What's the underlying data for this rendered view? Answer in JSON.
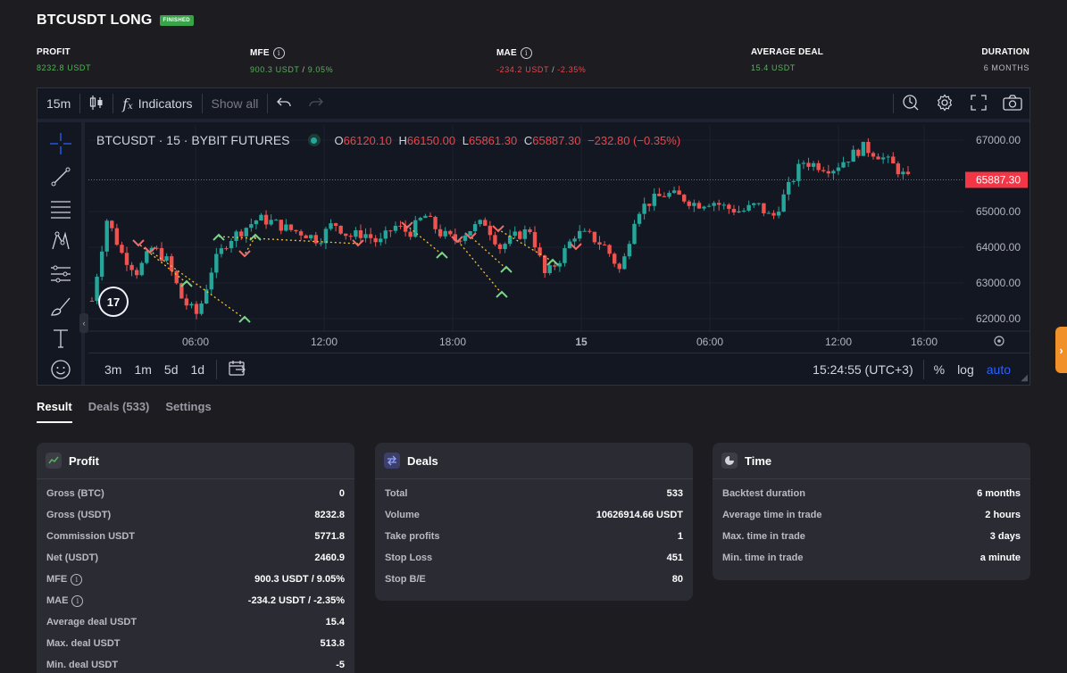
{
  "header": {
    "title": "BTCUSDT LONG",
    "badge": "FINISHED",
    "badge_color": "#3aa34a"
  },
  "stats": {
    "profit": {
      "label": "PROFIT",
      "value": "8232.8 USDT"
    },
    "mfe": {
      "label": "MFE",
      "value_usdt": "900.3 USDT",
      "sep": "/",
      "value_pct": "9.05%"
    },
    "mae": {
      "label": "MAE",
      "value_usdt": "-234.2 USDT",
      "sep": "/",
      "value_pct": "-2.35%"
    },
    "average_deal": {
      "label": "AVERAGE DEAL",
      "value": "15.4 USDT"
    },
    "duration": {
      "label": "DURATION",
      "value": "6 MONTHS"
    }
  },
  "chart_toolbar": {
    "interval": "15m",
    "indicators": "Indicators",
    "show_all": "Show all",
    "icons": [
      "candles-icon",
      "fx-icon",
      "undo-icon",
      "redo-icon",
      "replay-icon",
      "gear-icon",
      "fullscreen-icon",
      "camera-icon"
    ]
  },
  "chart_legend": {
    "symbol": "BTCUSDT · 15 · BYBIT FUTURES",
    "o_label": "O",
    "o_value": "66120.10",
    "h_label": "H",
    "h_value": "66150.00",
    "l_label": "L",
    "l_value": "65861.30",
    "c_label": "C",
    "c_value": "65887.30",
    "change": "−232.80 (−0.35%)"
  },
  "chart_bottom": {
    "ranges": [
      "3m",
      "1m",
      "5d",
      "1d"
    ],
    "clock": "15:24:55 (UTC+3)",
    "percent": "%",
    "log": "log",
    "auto": "auto"
  },
  "chart_data": {
    "type": "candlestick",
    "symbol": "BTCUSDT",
    "exchange": "BYBIT FUTURES",
    "x_ticks": [
      "06:00",
      "12:00",
      "18:00",
      "15",
      "06:00",
      "12:00",
      "16:00"
    ],
    "y_ticks": [
      "67000.00",
      "65000.00",
      "64000.00",
      "63000.00",
      "62000.00"
    ],
    "ylim": [
      61650,
      67400
    ],
    "last_price": "65887.30",
    "last_price_value": 65887.3,
    "colors": {
      "up": "#26a69a",
      "down": "#ef5350",
      "last_price": "#f23645"
    },
    "close_path": [
      62500,
      64800,
      63800,
      63300,
      64000,
      63600,
      62500,
      62100,
      63500,
      64200,
      64500,
      64800,
      64700,
      64500,
      64400,
      64200,
      64700,
      64300,
      64400,
      64100,
      64600,
      64400,
      64900,
      64400,
      64200,
      64500,
      64700,
      64000,
      64300,
      64500,
      63200,
      63700,
      64400,
      64300,
      64000,
      63300,
      65000,
      65300,
      65500,
      65400,
      65200,
      65300,
      65100,
      65000,
      65200,
      64800,
      65600,
      66400,
      66300,
      66200,
      66500,
      66800,
      66600,
      66300,
      65900
    ],
    "buy_markers": [
      63000,
      62000,
      64300,
      64300,
      63800,
      62700,
      63400,
      63600
    ],
    "sell_markers": [
      64100,
      63900,
      63800,
      64100,
      64600,
      64200,
      64300,
      64500,
      64000
    ]
  },
  "tabs": [
    {
      "label": "Result",
      "active": true
    },
    {
      "label": "Deals (533)",
      "active": false
    },
    {
      "label": "Settings",
      "active": false
    }
  ],
  "cards": {
    "profit": {
      "title": "Profit",
      "rows": [
        {
          "k": "Gross (BTC)",
          "v": "0"
        },
        {
          "k": "Gross (USDT)",
          "v": "8232.8"
        },
        {
          "k": "Commission USDT",
          "v": "5771.8"
        },
        {
          "k": "Net (USDT)",
          "v": "2460.9"
        },
        {
          "k": "MFE",
          "v": "900.3 USDT / 9.05%"
        },
        {
          "k": "MAE",
          "v": "-234.2 USDT / -2.35%"
        },
        {
          "k": "Average deal USDT",
          "v": "15.4"
        },
        {
          "k": "Max. deal USDT",
          "v": "513.8"
        },
        {
          "k": "Min. deal USDT",
          "v": "-5"
        }
      ]
    },
    "deals": {
      "title": "Deals",
      "rows": [
        {
          "k": "Total",
          "v": "533"
        },
        {
          "k": "Volume",
          "v": "10626914.66 USDT"
        },
        {
          "k": "Take profits",
          "v": "1"
        },
        {
          "k": "Stop Loss",
          "v": "451"
        },
        {
          "k": "Stop B/E",
          "v": "80"
        }
      ]
    },
    "time": {
      "title": "Time",
      "rows": [
        {
          "k": "Backtest duration",
          "v": "6 months"
        },
        {
          "k": "Average time in trade",
          "v": "2 hours"
        },
        {
          "k": "Max. time in trade",
          "v": "3 days"
        },
        {
          "k": "Min. time in trade",
          "v": "a minute"
        }
      ]
    }
  }
}
